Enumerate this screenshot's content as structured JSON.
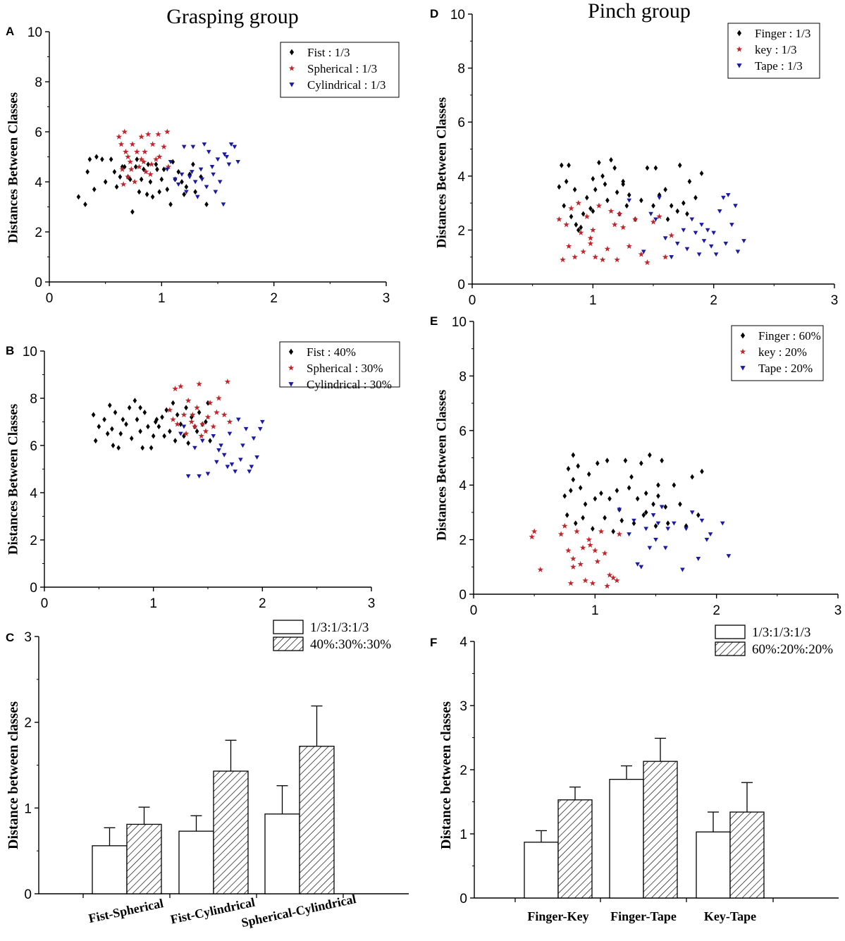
{
  "figure": {
    "titles": {
      "left": "Grasping group",
      "right": "Pinch group"
    }
  },
  "colors": {
    "black": "#000000",
    "red": "#c0252b",
    "blue": "#1a1aa6",
    "white": "#ffffff"
  },
  "chart_data": [
    {
      "id": "A",
      "type": "scatter",
      "title": "Grasping group",
      "ylabel": "Distances Between Classes",
      "xlim": [
        0,
        3
      ],
      "ylim": [
        0,
        10
      ],
      "xticks": [
        "0",
        "1",
        "2",
        "3"
      ],
      "yticks": [
        "0",
        "2",
        "4",
        "6",
        "8",
        "10"
      ],
      "series": [
        {
          "name": "Fist",
          "label": "Fist : 1/3",
          "marker": "diamond",
          "color": "#000000",
          "x": [
            0.26,
            0.32,
            0.34,
            0.36,
            0.4,
            0.42,
            0.47,
            0.5,
            0.55,
            0.58,
            0.6,
            0.63,
            0.65,
            0.67,
            0.7,
            0.72,
            0.74,
            0.77,
            0.8,
            0.82,
            0.84,
            0.87,
            0.9,
            0.92,
            0.95,
            0.98,
            1.0,
            1.02,
            1.05,
            1.08,
            1.1,
            1.12,
            1.15,
            1.18,
            1.2,
            1.25,
            1.28,
            1.3,
            1.35,
            1.4,
            0.78,
            0.88,
            0.96,
            1.22
          ],
          "y": [
            3.4,
            3.1,
            4.4,
            4.9,
            3.7,
            5.0,
            4.9,
            4.0,
            4.9,
            4.4,
            3.8,
            4.2,
            4.6,
            4.6,
            4.2,
            4.1,
            2.8,
            4.6,
            3.6,
            4.1,
            4.5,
            3.5,
            4.0,
            3.4,
            4.7,
            3.6,
            4.1,
            4.5,
            3.7,
            3.1,
            4.8,
            4.1,
            4.4,
            4.0,
            3.5,
            4.3,
            4.7,
            3.6,
            4.2,
            3.1,
            4.9,
            4.7,
            4.5,
            3.8
          ]
        },
        {
          "name": "Spherical",
          "label": "Spherical : 1/3",
          "marker": "star",
          "color": "#c0252b",
          "x": [
            0.62,
            0.64,
            0.65,
            0.67,
            0.68,
            0.7,
            0.72,
            0.74,
            0.76,
            0.78,
            0.8,
            0.82,
            0.84,
            0.86,
            0.88,
            0.9,
            0.92,
            0.95,
            0.98,
            1.02,
            1.05,
            0.66,
            0.73,
            0.85,
            0.91,
            0.97,
            1.06,
            0.7,
            0.82
          ],
          "y": [
            5.8,
            5.5,
            4.5,
            6.0,
            5.2,
            4.2,
            4.8,
            5.5,
            4.0,
            5.2,
            4.6,
            5.8,
            4.8,
            4.4,
            5.9,
            4.3,
            5.5,
            4.9,
            5.0,
            5.4,
            6.0,
            3.9,
            4.5,
            5.2,
            4.7,
            5.9,
            4.6,
            5.0,
            4.9
          ]
        },
        {
          "name": "Cylindrical",
          "label": "Cylindrical : 1/3",
          "marker": "triangle-down",
          "color": "#1a1aa6",
          "x": [
            1.05,
            1.08,
            1.12,
            1.15,
            1.18,
            1.2,
            1.22,
            1.25,
            1.28,
            1.3,
            1.32,
            1.35,
            1.38,
            1.4,
            1.42,
            1.45,
            1.48,
            1.5,
            1.52,
            1.55,
            1.58,
            1.6,
            1.62,
            1.65,
            1.68,
            1.27,
            1.36,
            1.46,
            1.56
          ],
          "y": [
            4.5,
            4.8,
            4.1,
            3.9,
            4.3,
            5.4,
            3.6,
            4.2,
            5.4,
            4.0,
            3.4,
            4.5,
            5.5,
            3.8,
            5.2,
            4.6,
            3.6,
            4.9,
            4.0,
            3.1,
            5.0,
            4.7,
            5.5,
            5.4,
            4.8,
            4.4,
            4.1,
            4.3,
            5.1
          ]
        }
      ]
    },
    {
      "id": "B",
      "type": "scatter",
      "title": "",
      "ylabel": "Distances Between Classes",
      "xlim": [
        0,
        3
      ],
      "ylim": [
        0,
        10
      ],
      "xticks": [
        "0",
        "1",
        "2",
        "3"
      ],
      "yticks": [
        "0",
        "2",
        "4",
        "6",
        "8",
        "10"
      ],
      "series": [
        {
          "name": "Fist",
          "label": "Fist : 40%",
          "marker": "diamond",
          "color": "#000000",
          "x": [
            0.45,
            0.47,
            0.5,
            0.55,
            0.58,
            0.6,
            0.63,
            0.65,
            0.68,
            0.7,
            0.72,
            0.75,
            0.78,
            0.8,
            0.83,
            0.85,
            0.88,
            0.9,
            0.92,
            0.95,
            0.98,
            1.0,
            1.03,
            1.05,
            1.08,
            1.1,
            1.12,
            1.15,
            1.18,
            1.2,
            1.22,
            1.25,
            1.28,
            1.3,
            1.32,
            1.35,
            1.38,
            1.4,
            1.42,
            1.45,
            1.48,
            1.5,
            1.52,
            0.62,
            0.88,
            1.02
          ],
          "y": [
            7.3,
            6.2,
            6.8,
            7.1,
            6.5,
            7.7,
            6.0,
            7.4,
            5.9,
            6.5,
            7.1,
            6.9,
            7.6,
            6.3,
            7.9,
            7.1,
            6.6,
            5.9,
            7.4,
            6.8,
            5.9,
            6.4,
            7.1,
            6.8,
            7.2,
            6.4,
            7.5,
            6.6,
            7.8,
            6.2,
            7.3,
            6.9,
            6.4,
            7.6,
            6.1,
            7.2,
            6.8,
            6.6,
            7.4,
            6.9,
            7.0,
            7.8,
            6.2,
            6.7,
            7.6,
            7.0
          ]
        },
        {
          "name": "Spherical",
          "label": "Spherical : 30%",
          "marker": "star",
          "color": "#c0252b",
          "x": [
            1.15,
            1.18,
            1.2,
            1.22,
            1.25,
            1.28,
            1.3,
            1.32,
            1.35,
            1.38,
            1.4,
            1.42,
            1.45,
            1.48,
            1.5,
            1.52,
            1.55,
            1.58,
            1.6,
            1.65,
            1.68,
            1.7,
            1.36,
            1.44
          ],
          "y": [
            7.5,
            7.1,
            8.4,
            6.9,
            8.5,
            7.3,
            6.5,
            7.9,
            7.0,
            6.8,
            7.6,
            8.6,
            6.9,
            6.6,
            7.2,
            7.8,
            6.8,
            7.4,
            8.0,
            7.3,
            8.7,
            7.0,
            7.3,
            6.4
          ]
        },
        {
          "name": "Cylindrical",
          "label": "Cylindrical : 30%",
          "marker": "triangle-down",
          "color": "#1a1aa6",
          "x": [
            1.25,
            1.28,
            1.32,
            1.38,
            1.42,
            1.45,
            1.5,
            1.55,
            1.58,
            1.6,
            1.62,
            1.65,
            1.68,
            1.7,
            1.72,
            1.75,
            1.78,
            1.8,
            1.82,
            1.85,
            1.88,
            1.9,
            1.92,
            1.95,
            1.98,
            2.0
          ],
          "y": [
            6.5,
            6.8,
            4.7,
            5.9,
            4.7,
            6.2,
            4.8,
            6.4,
            5.3,
            5.8,
            6.0,
            5.6,
            5.1,
            6.5,
            5.2,
            4.9,
            7.1,
            5.4,
            6.0,
            6.7,
            4.9,
            5.1,
            6.3,
            5.5,
            6.7,
            7.0
          ]
        }
      ]
    },
    {
      "id": "C",
      "type": "bar",
      "title": "",
      "ylabel": "Distance between classes",
      "ylim": [
        0,
        3
      ],
      "yticks": [
        "0",
        "1",
        "2",
        "3"
      ],
      "categories": [
        "Fist-Spherical",
        "Fist-Cylindrical",
        "Spherical-Cylindrical"
      ],
      "series": [
        {
          "name": "1/3:1/3:1/3",
          "fill": "white",
          "values": [
            0.56,
            0.73,
            0.93
          ],
          "errors": [
            0.21,
            0.18,
            0.33
          ]
        },
        {
          "name": "40%:30%:30%",
          "fill": "hatch",
          "values": [
            0.81,
            1.43,
            1.72
          ],
          "errors": [
            0.2,
            0.36,
            0.47
          ]
        }
      ]
    },
    {
      "id": "D",
      "type": "scatter",
      "title": "Pinch group",
      "ylabel": "Distances Between Classes",
      "xlim": [
        0,
        3
      ],
      "ylim": [
        0,
        10
      ],
      "xticks": [
        "0",
        "1",
        "2",
        "3"
      ],
      "yticks": [
        "0",
        "2",
        "4",
        "6",
        "8",
        "10"
      ],
      "series": [
        {
          "name": "Finger",
          "label": "Finger : 1/3",
          "marker": "diamond",
          "color": "#000000",
          "x": [
            0.72,
            0.74,
            0.76,
            0.78,
            0.8,
            0.82,
            0.85,
            0.88,
            0.9,
            0.92,
            0.95,
            0.98,
            1.0,
            1.02,
            1.05,
            1.08,
            1.1,
            1.12,
            1.15,
            1.18,
            1.2,
            1.22,
            1.25,
            1.28,
            1.3,
            1.35,
            1.4,
            1.45,
            1.5,
            1.52,
            1.55,
            1.6,
            1.62,
            1.65,
            1.7,
            1.72,
            1.75,
            1.78,
            1.8,
            1.85,
            1.9,
            0.86,
            1.0,
            1.25
          ],
          "y": [
            3.6,
            4.4,
            2.9,
            3.8,
            4.4,
            2.5,
            3.5,
            2.0,
            2.1,
            2.6,
            3.2,
            2.8,
            2.7,
            3.5,
            4.5,
            4.0,
            3.7,
            3.1,
            4.6,
            4.3,
            3.4,
            2.6,
            3.8,
            2.9,
            3.3,
            2.4,
            3.1,
            4.3,
            2.9,
            4.3,
            3.3,
            3.5,
            2.4,
            2.9,
            2.7,
            4.4,
            3.0,
            2.6,
            3.8,
            3.2,
            4.1,
            2.2,
            3.9,
            3.7
          ]
        },
        {
          "name": "key",
          "label": "key : 1/3",
          "marker": "star",
          "color": "#c0252b",
          "x": [
            0.72,
            0.75,
            0.78,
            0.8,
            0.82,
            0.85,
            0.88,
            0.9,
            0.92,
            0.95,
            0.98,
            1.0,
            1.02,
            1.05,
            1.08,
            1.12,
            1.15,
            1.18,
            1.2,
            1.25,
            1.3,
            1.35,
            1.4,
            1.45,
            1.5,
            1.55,
            1.6,
            1.65,
            0.98,
            1.22
          ],
          "y": [
            2.4,
            0.9,
            2.2,
            1.4,
            2.8,
            1.0,
            3.0,
            1.9,
            1.2,
            2.5,
            1.7,
            2.0,
            1.0,
            2.9,
            0.9,
            1.3,
            2.7,
            2.2,
            0.9,
            2.1,
            1.4,
            2.4,
            1.1,
            0.8,
            2.3,
            2.5,
            1.0,
            1.8,
            1.5,
            2.6
          ]
        },
        {
          "name": "Tape",
          "label": "Tape : 1/3",
          "marker": "triangle-down",
          "color": "#1a1aa6",
          "x": [
            1.3,
            1.42,
            1.48,
            1.52,
            1.55,
            1.6,
            1.65,
            1.7,
            1.75,
            1.78,
            1.82,
            1.85,
            1.88,
            1.9,
            1.92,
            1.95,
            1.98,
            2.0,
            2.02,
            2.05,
            2.08,
            2.1,
            2.12,
            2.15,
            2.18,
            2.2,
            2.25
          ],
          "y": [
            3.1,
            1.2,
            2.6,
            2.4,
            3.2,
            1.7,
            1.0,
            1.5,
            2.0,
            1.3,
            2.4,
            1.9,
            1.1,
            2.2,
            1.6,
            2.0,
            1.4,
            1.9,
            1.1,
            2.7,
            3.2,
            1.5,
            3.3,
            2.2,
            2.9,
            1.2,
            1.6
          ]
        }
      ]
    },
    {
      "id": "E",
      "type": "scatter",
      "title": "",
      "ylabel": "Distances Between Classes",
      "xlim": [
        0,
        3
      ],
      "ylim": [
        0,
        10
      ],
      "xticks": [
        "0",
        "1",
        "2",
        "3"
      ],
      "yticks": [
        "0",
        "2",
        "4",
        "6",
        "8",
        "10"
      ],
      "series": [
        {
          "name": "Finger",
          "label": "Finger : 60%",
          "marker": "diamond",
          "color": "#000000",
          "x": [
            0.75,
            0.77,
            0.78,
            0.8,
            0.82,
            0.84,
            0.86,
            0.88,
            0.9,
            0.92,
            0.95,
            0.98,
            1.0,
            1.02,
            1.05,
            1.08,
            1.1,
            1.12,
            1.15,
            1.18,
            1.2,
            1.22,
            1.25,
            1.28,
            1.3,
            1.32,
            1.35,
            1.38,
            1.4,
            1.42,
            1.45,
            1.48,
            1.5,
            1.52,
            1.55,
            1.58,
            1.6,
            1.65,
            1.7,
            1.75,
            1.8,
            1.85,
            1.88,
            0.82,
            1.42,
            1.52
          ],
          "y": [
            3.6,
            2.9,
            4.6,
            3.8,
            5.1,
            2.6,
            4.7,
            3.9,
            2.8,
            3.3,
            4.4,
            2.4,
            3.5,
            4.8,
            3.7,
            2.8,
            4.9,
            3.5,
            2.3,
            3.8,
            3.1,
            2.7,
            4.9,
            3.9,
            4.3,
            2.6,
            3.5,
            4.8,
            2.9,
            3.7,
            5.1,
            3.3,
            2.5,
            4.0,
            4.9,
            3.2,
            2.6,
            4.0,
            3.3,
            2.5,
            4.3,
            2.9,
            4.5,
            4.2,
            3.0,
            3.6
          ]
        },
        {
          "name": "key",
          "label": "key : 20%",
          "marker": "star",
          "color": "#c0252b",
          "x": [
            0.48,
            0.5,
            0.55,
            0.72,
            0.75,
            0.78,
            0.8,
            0.82,
            0.85,
            0.88,
            0.9,
            0.92,
            0.95,
            0.98,
            1.0,
            1.02,
            1.05,
            1.08,
            1.1,
            1.12,
            1.15,
            1.18,
            1.2,
            0.82,
            0.96
          ],
          "y": [
            2.1,
            2.3,
            0.9,
            2.2,
            2.5,
            1.6,
            0.4,
            1.3,
            2.3,
            1.1,
            1.7,
            0.5,
            2.0,
            0.4,
            1.6,
            1.2,
            2.3,
            1.5,
            0.3,
            0.7,
            0.6,
            0.5,
            2.2,
            1.0,
            1.8
          ]
        },
        {
          "name": "Tape",
          "label": "Tape : 20%",
          "marker": "triangle-down",
          "color": "#1a1aa6",
          "x": [
            1.2,
            1.28,
            1.32,
            1.35,
            1.38,
            1.42,
            1.45,
            1.48,
            1.5,
            1.52,
            1.55,
            1.58,
            1.6,
            1.65,
            1.72,
            1.75,
            1.8,
            1.85,
            1.88,
            1.92,
            1.95,
            2.05,
            2.1
          ],
          "y": [
            3.1,
            2.2,
            2.7,
            1.1,
            1.0,
            2.4,
            1.7,
            2.9,
            2.0,
            2.6,
            3.2,
            1.7,
            2.4,
            2.6,
            0.9,
            2.4,
            3.0,
            1.3,
            2.7,
            2.0,
            2.2,
            2.6,
            1.4
          ]
        }
      ]
    },
    {
      "id": "F",
      "type": "bar",
      "title": "",
      "ylabel": "Distance between classes",
      "ylim": [
        0,
        4
      ],
      "yticks": [
        "0",
        "1",
        "2",
        "3",
        "4"
      ],
      "categories": [
        "Finger-Key",
        "Finger-Tape",
        "Key-Tape"
      ],
      "series": [
        {
          "name": "1/3:1/3:1/3",
          "fill": "white",
          "values": [
            0.87,
            1.85,
            1.03
          ],
          "errors": [
            0.18,
            0.21,
            0.31
          ]
        },
        {
          "name": "60%:20%:20%",
          "fill": "hatch",
          "values": [
            1.53,
            2.13,
            1.34
          ],
          "errors": [
            0.2,
            0.36,
            0.46
          ]
        }
      ]
    }
  ]
}
